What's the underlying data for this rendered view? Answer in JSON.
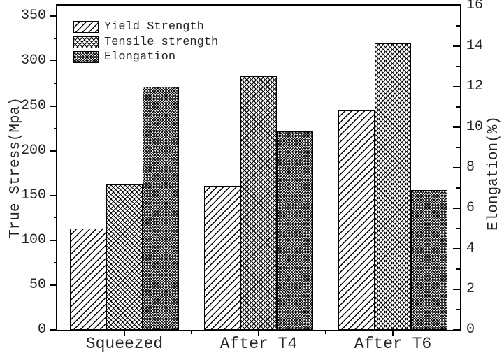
{
  "figure": {
    "background": "#ffffff",
    "text_color": "#262626",
    "line_color": "#000000"
  },
  "chart_data": {
    "type": "bar",
    "title": "",
    "categories": [
      "Squeezed",
      "After T4",
      "After T6"
    ],
    "series": [
      {
        "name": "Yield Strength",
        "axis": "left",
        "pattern": "diagonal-hatch",
        "values": [
          113,
          161,
          245
        ]
      },
      {
        "name": "Tensile strength",
        "axis": "left",
        "pattern": "crosshatch",
        "values": [
          162,
          283,
          320
        ]
      },
      {
        "name": "Elongation",
        "axis": "right",
        "pattern": "dense-crosshatch",
        "values": [
          12.0,
          9.8,
          6.9
        ]
      }
    ],
    "left_axis": {
      "label": "True Stress(Mpa)",
      "range": [
        0,
        362
      ],
      "tick_max": 350,
      "major_step": 50,
      "minor_step": 25
    },
    "right_axis": {
      "label": "Elongation(%)",
      "range": [
        0,
        16
      ],
      "tick_max": 16,
      "major_step": 2,
      "minor_step": 1
    },
    "legend_position": "top-left",
    "grid": false,
    "frame": "box"
  }
}
